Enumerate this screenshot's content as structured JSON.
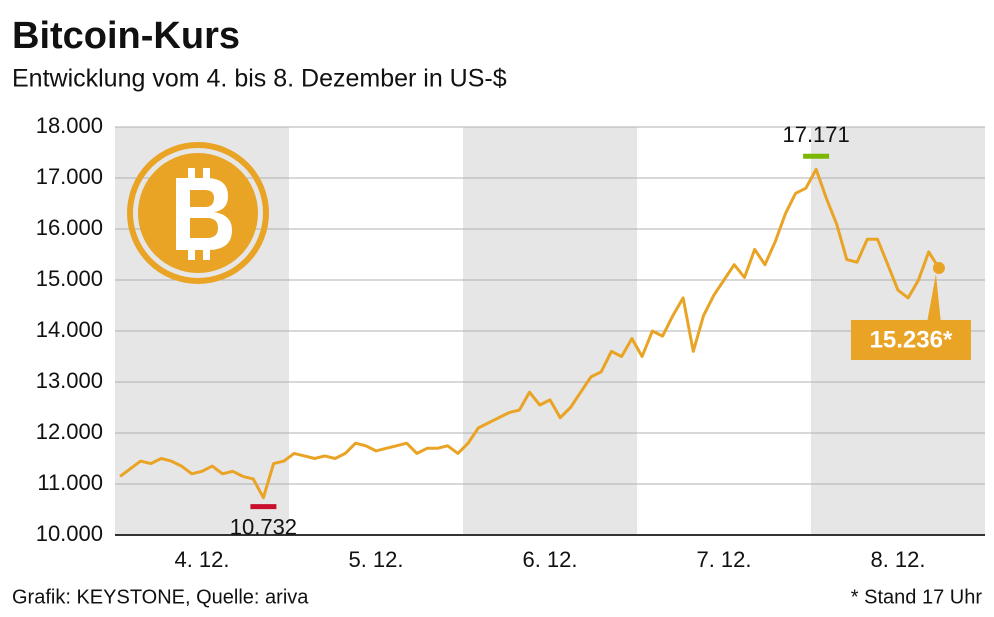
{
  "chart_data": {
    "type": "line",
    "title": "Bitcoin-Kurs",
    "subtitle": "Entwicklung vom 4. bis 8. Dezember in US-$",
    "source": "Grafik: KEYSTONE, Quelle: ariva",
    "note": "* Stand 17 Uhr",
    "color": "#e9a325",
    "categories": [
      null,
      null,
      null,
      null,
      null,
      null,
      null,
      null,
      "4. 12.",
      null,
      null,
      null,
      null,
      null,
      null,
      null,
      null,
      null,
      null,
      null,
      null,
      null,
      null,
      null,
      null,
      "5. 12.",
      null,
      null,
      null,
      null,
      null,
      null,
      null,
      null,
      null,
      null,
      null,
      null,
      null,
      null,
      null,
      null,
      "6. 12.",
      null,
      null,
      null,
      null,
      null,
      null,
      null,
      null,
      null,
      null,
      null,
      null,
      null,
      null,
      null,
      null,
      "7. 12.",
      null,
      null,
      null,
      null,
      null,
      null,
      null,
      null,
      null,
      null,
      null,
      null,
      null,
      null,
      null,
      null,
      "8. 12.",
      null,
      null,
      null,
      null,
      null,
      null,
      null,
      null
    ],
    "values": [
      11150,
      11300,
      11450,
      11400,
      11500,
      11450,
      11350,
      11200,
      11250,
      11350,
      11200,
      11250,
      11150,
      11100,
      10732,
      11400,
      11450,
      11600,
      11550,
      11500,
      11550,
      11500,
      11600,
      11800,
      11750,
      11650,
      11700,
      11750,
      11800,
      11600,
      11700,
      11700,
      11750,
      11600,
      11800,
      12100,
      12200,
      12300,
      12400,
      12450,
      12800,
      12550,
      12650,
      12300,
      12500,
      12800,
      13100,
      13200,
      13600,
      13500,
      13850,
      13500,
      14000,
      13900,
      14300,
      14650,
      13600,
      14300,
      14700,
      15000,
      15300,
      15050,
      15600,
      15300,
      15750,
      16300,
      16700,
      16800,
      17171,
      16600,
      16100,
      15400,
      15350,
      15800,
      15800,
      15300,
      14800,
      14650,
      15000,
      15550,
      15236,
      null,
      null,
      null,
      null
    ],
    "value_labels": [
      null,
      null,
      null,
      null,
      null,
      null,
      null,
      null,
      null,
      null,
      null,
      null,
      null,
      null,
      "10.732",
      null,
      null,
      null,
      null,
      null,
      null,
      null,
      null,
      null,
      null,
      null,
      null,
      null,
      null,
      null,
      null,
      null,
      null,
      null,
      null,
      null,
      null,
      null,
      null,
      null,
      null,
      null,
      null,
      null,
      null,
      null,
      null,
      null,
      null,
      null,
      null,
      null,
      null,
      null,
      null,
      null,
      null,
      null,
      null,
      null,
      null,
      null,
      null,
      null,
      null,
      null,
      null,
      null,
      "17.171",
      null,
      null,
      null,
      null,
      null,
      null,
      null,
      null,
      null,
      null,
      null,
      "15.236*",
      null,
      null,
      null,
      null
    ],
    "ylim": [
      10000,
      18000
    ],
    "yticks": [
      {
        "value": 10000,
        "label": "10.000"
      },
      {
        "value": 11000,
        "label": "11.000"
      },
      {
        "value": 12000,
        "label": "12.000"
      },
      {
        "value": 13000,
        "label": "13.000"
      },
      {
        "value": 14000,
        "label": "14.000"
      },
      {
        "value": 15000,
        "label": "15.000"
      },
      {
        "value": 16000,
        "label": "16.000"
      },
      {
        "value": 17000,
        "label": "17.000"
      },
      {
        "value": 18000,
        "label": "18.000"
      }
    ],
    "grid": true
  }
}
